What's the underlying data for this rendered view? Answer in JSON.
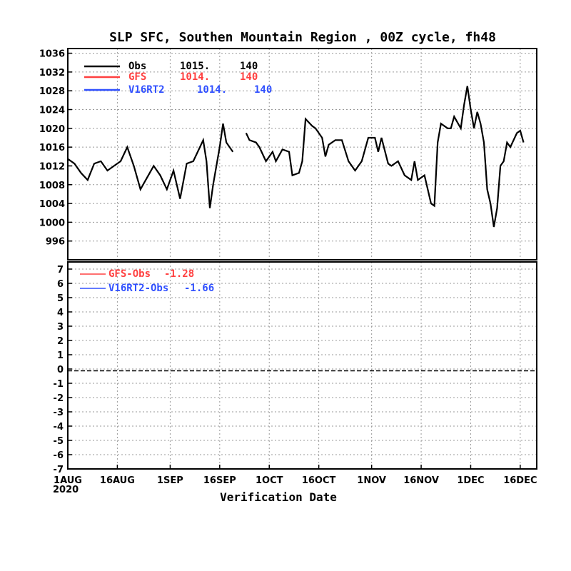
{
  "chart_data": [
    {
      "type": "line",
      "title": "SLP SFC, Southen Mountain Region , 00Z cycle, fh48",
      "xlabel": "Verification Date",
      "x_ticks": [
        "1AUG",
        "16AUG",
        "1SEP",
        "16SEP",
        "1OCT",
        "16OCT",
        "1NOV",
        "16NOV",
        "1DEC",
        "16DEC"
      ],
      "x_year": "2020",
      "xlim": [
        "2020-08-01",
        "2020-12-21"
      ],
      "ylim": [
        992,
        1037
      ],
      "y_ticks": [
        996,
        1000,
        1004,
        1008,
        1012,
        1016,
        1020,
        1024,
        1028,
        1032,
        1036
      ],
      "grid": true,
      "legend_position": "top-left",
      "legend": [
        {
          "label": "Obs",
          "mean": "1015.",
          "count": "140",
          "color": "#000000"
        },
        {
          "label": "GFS",
          "mean": "1014.",
          "count": "140",
          "color": "#ff4040"
        },
        {
          "label": "V16RT2",
          "mean": "1014.",
          "count": "140",
          "color": "#3050ff"
        }
      ],
      "series": [
        {
          "name": "Obs",
          "color": "#000000",
          "points": [
            [
              "2020-08-01",
              1013.5
            ],
            [
              "2020-08-03",
              1012.5
            ],
            [
              "2020-08-05",
              1010.5
            ],
            [
              "2020-08-07",
              1009
            ],
            [
              "2020-08-09",
              1012.5
            ],
            [
              "2020-08-11",
              1013
            ],
            [
              "2020-08-13",
              1011
            ],
            [
              "2020-08-15",
              1012
            ],
            [
              "2020-08-17",
              1013
            ],
            [
              "2020-08-19",
              1016
            ],
            [
              "2020-08-21",
              1012
            ],
            [
              "2020-08-23",
              1007
            ],
            [
              "2020-08-25",
              1009.5
            ],
            [
              "2020-08-27",
              1012
            ],
            [
              "2020-08-29",
              1010
            ],
            [
              "2020-08-31",
              1007
            ],
            [
              "2020-09-02",
              1011
            ],
            [
              "2020-09-03",
              1008
            ],
            [
              "2020-09-04",
              1005
            ],
            [
              "2020-09-06",
              1012.5
            ],
            [
              "2020-09-08",
              1013
            ],
            [
              "2020-09-10",
              1016
            ],
            [
              "2020-09-11",
              1017.5
            ],
            [
              "2020-09-12",
              1013
            ],
            [
              "2020-09-13",
              1003
            ],
            [
              "2020-09-14",
              1008
            ],
            [
              "2020-09-16",
              1016
            ],
            [
              "2020-09-17",
              1021
            ],
            [
              "2020-09-18",
              1017
            ],
            [
              "2020-09-20",
              1015
            ],
            null,
            [
              "2020-09-24",
              1019
            ],
            [
              "2020-09-25",
              1017.5
            ],
            [
              "2020-09-27",
              1017
            ],
            [
              "2020-09-28",
              1016
            ],
            [
              "2020-09-30",
              1013
            ],
            [
              "2020-10-02",
              1015
            ],
            [
              "2020-10-03",
              1013
            ],
            [
              "2020-10-05",
              1015.5
            ],
            [
              "2020-10-07",
              1015
            ],
            [
              "2020-10-08",
              1010
            ],
            [
              "2020-10-10",
              1010.5
            ],
            [
              "2020-10-11",
              1013
            ],
            [
              "2020-10-12",
              1022
            ],
            [
              "2020-10-14",
              1020.5
            ],
            [
              "2020-10-15",
              1020
            ],
            [
              "2020-10-17",
              1018
            ],
            [
              "2020-10-18",
              1014
            ],
            [
              "2020-10-19",
              1016.5
            ],
            [
              "2020-10-21",
              1017.5
            ],
            [
              "2020-10-23",
              1017.5
            ],
            [
              "2020-10-25",
              1013
            ],
            [
              "2020-10-27",
              1011
            ],
            [
              "2020-10-29",
              1013
            ],
            [
              "2020-10-31",
              1018
            ],
            [
              "2020-11-02",
              1018
            ],
            [
              "2020-11-03",
              1015
            ],
            [
              "2020-11-04",
              1018
            ],
            [
              "2020-11-06",
              1012.5
            ],
            [
              "2020-11-07",
              1012
            ],
            [
              "2020-11-09",
              1013
            ],
            [
              "2020-11-11",
              1010
            ],
            [
              "2020-11-13",
              1009
            ],
            [
              "2020-11-14",
              1013
            ],
            [
              "2020-11-15",
              1009
            ],
            [
              "2020-11-17",
              1010
            ],
            [
              "2020-11-18",
              1007
            ],
            [
              "2020-11-19",
              1004
            ],
            [
              "2020-11-20",
              1003.5
            ],
            [
              "2020-11-21",
              1017
            ],
            [
              "2020-11-22",
              1021
            ],
            [
              "2020-11-24",
              1020
            ],
            [
              "2020-11-25",
              1020
            ],
            [
              "2020-11-26",
              1022.5
            ],
            [
              "2020-11-28",
              1020
            ],
            [
              "2020-11-29",
              1025
            ],
            [
              "2020-11-30",
              1029
            ],
            [
              "2020-12-01",
              1024
            ],
            [
              "2020-12-02",
              1020
            ],
            [
              "2020-12-03",
              1023.5
            ],
            [
              "2020-12-04",
              1021
            ],
            [
              "2020-12-05",
              1017
            ],
            [
              "2020-12-06",
              1007
            ],
            [
              "2020-12-07",
              1004
            ],
            [
              "2020-12-08",
              999
            ],
            [
              "2020-12-09",
              1003
            ],
            [
              "2020-12-10",
              1012
            ],
            [
              "2020-12-11",
              1013
            ],
            [
              "2020-12-12",
              1017
            ],
            [
              "2020-12-13",
              1016
            ],
            [
              "2020-12-15",
              1019
            ],
            [
              "2020-12-16",
              1019.5
            ],
            [
              "2020-12-17",
              1017
            ]
          ]
        },
        {
          "name": "GFS",
          "color": "#ff4040",
          "points": []
        },
        {
          "name": "V16RT2",
          "color": "#3050ff",
          "points": []
        }
      ]
    },
    {
      "type": "line",
      "xlabel": "Verification Date",
      "ylim": [
        -7,
        7.5
      ],
      "y_ticks": [
        -7,
        -6,
        -5,
        -4,
        -3,
        -2,
        -1,
        0,
        1,
        2,
        3,
        4,
        5,
        6,
        7
      ],
      "grid": true,
      "legend_position": "top-left",
      "legend": [
        {
          "label": "GFS-Obs",
          "mean": "-1.28",
          "color": "#ff4040"
        },
        {
          "label": "V16RT2-Obs",
          "mean": "-1.66",
          "color": "#3050ff"
        }
      ],
      "series": [
        {
          "name": "GFS-Obs",
          "color": "#ff4040",
          "values": []
        },
        {
          "name": "V16RT2-Obs",
          "color": "#3050ff",
          "values": []
        }
      ]
    }
  ]
}
